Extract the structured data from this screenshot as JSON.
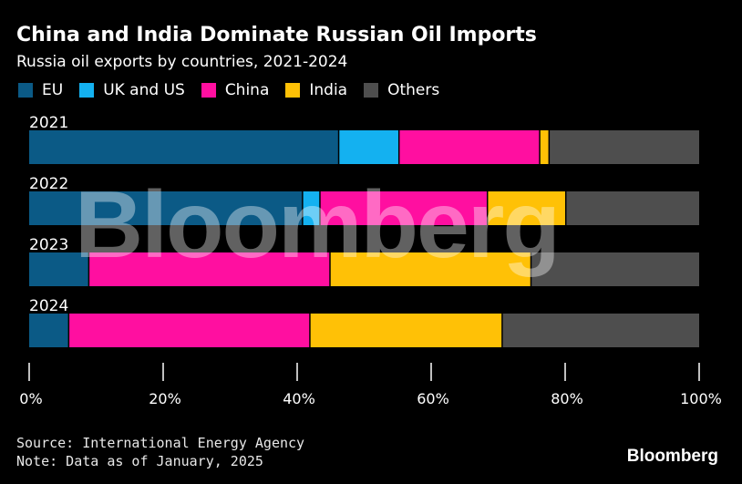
{
  "title": "China and India Dominate Russian Oil Imports",
  "subtitle": "Russia oil exports by countries, 2021-2024",
  "legend": [
    {
      "label": "EU",
      "color": "#0b5a86"
    },
    {
      "label": "UK and US",
      "color": "#14b1f0"
    },
    {
      "label": "China",
      "color": "#ff0fa0"
    },
    {
      "label": "India",
      "color": "#ffc106"
    },
    {
      "label": "Others",
      "color": "#4e4e4e"
    }
  ],
  "chart_data": {
    "type": "bar",
    "orientation": "horizontal",
    "stacked": true,
    "categories": [
      "2021",
      "2022",
      "2023",
      "2024"
    ],
    "series": [
      {
        "name": "EU",
        "color": "#0b5a86",
        "values": [
          46.3,
          40.9,
          9.0,
          6.0
        ]
      },
      {
        "name": "UK and US",
        "color": "#14b1f0",
        "values": [
          9.0,
          2.6,
          0.0,
          0.0
        ]
      },
      {
        "name": "China",
        "color": "#ff0fa0",
        "values": [
          21.0,
          25.0,
          36.0,
          36.0
        ]
      },
      {
        "name": "India",
        "color": "#ffc106",
        "values": [
          1.4,
          11.7,
          30.0,
          28.7
        ]
      },
      {
        "name": "Others",
        "color": "#4e4e4e",
        "values": [
          22.3,
          19.8,
          25.0,
          29.3
        ]
      }
    ],
    "xlim": [
      0,
      100
    ],
    "xticks": [
      "0%",
      "20%",
      "40%",
      "60%",
      "80%",
      "100%"
    ],
    "legend_position": "top-left"
  },
  "watermark": "Bloomberg",
  "footer": {
    "source": "Source: International Energy Agency",
    "note": "Note: Data as of January, 2025",
    "brand": "Bloomberg"
  }
}
